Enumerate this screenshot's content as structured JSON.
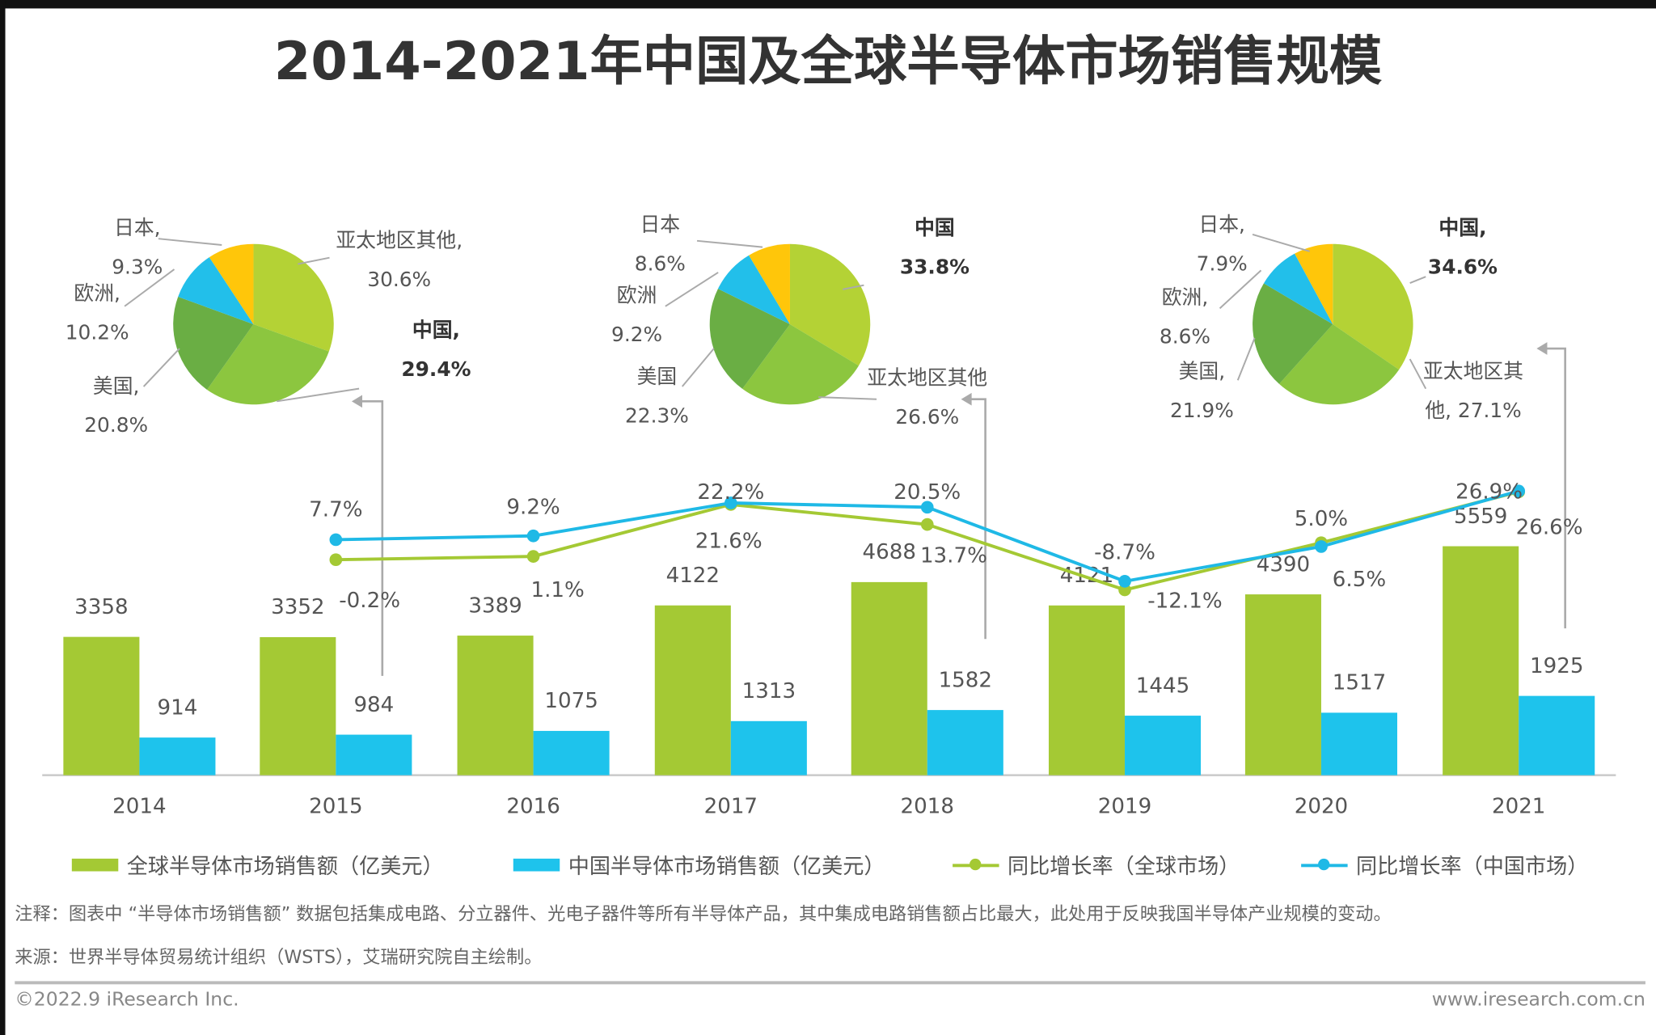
{
  "title": "2014-2021年中国及全球半导体市场销售规模",
  "colors": {
    "global_bar": "#a4c934",
    "china_bar": "#1ec3ec",
    "global_line": "#a4c934",
    "china_line": "#1fb9e6",
    "pie_apac_or_first": "#b4d235",
    "pie_second": "#8cc63f",
    "pie_usa": "#6aae44",
    "pie_europe": "#22bfea",
    "pie_japan": "#ffc60a"
  },
  "pies": [
    {
      "year": "2014",
      "slices": [
        {
          "name": "亚太地区其他",
          "value": 30.6
        },
        {
          "name": "中国",
          "value": 29.4
        },
        {
          "name": "美国",
          "value": 20.8
        },
        {
          "name": "欧洲",
          "value": 10.2
        },
        {
          "name": "日本",
          "value": 9.3
        }
      ],
      "labels": [
        {
          "line1": "日本,",
          "line2": "9.3%"
        },
        {
          "line1": "欧洲,",
          "line2": "10.2%"
        },
        {
          "line1": "美国,",
          "line2": "20.8%"
        },
        {
          "line1": "亚太地区其他,",
          "line2": "30.6%"
        },
        {
          "line1": "中国,",
          "line2": "29.4%"
        }
      ]
    },
    {
      "year": "2017",
      "slices": [
        {
          "name": "中国",
          "value": 33.8
        },
        {
          "name": "亚太地区其他",
          "value": 26.6
        },
        {
          "name": "美国",
          "value": 22.3
        },
        {
          "name": "欧洲",
          "value": 9.2
        },
        {
          "name": "日本",
          "value": 8.6
        }
      ],
      "labels": [
        {
          "line1": "日本",
          "line2": "8.6%"
        },
        {
          "line1": "欧洲",
          "line2": "9.2%"
        },
        {
          "line1": "美国",
          "line2": "22.3%"
        },
        {
          "line1": "中国",
          "line2": "33.8%"
        },
        {
          "line1": "亚太地区其他",
          "line2": "26.6%"
        }
      ]
    },
    {
      "year": "2021",
      "slices": [
        {
          "name": "中国",
          "value": 34.6
        },
        {
          "name": "亚太地区其他",
          "value": 27.1
        },
        {
          "name": "美国",
          "value": 21.9
        },
        {
          "name": "欧洲",
          "value": 8.6
        },
        {
          "name": "日本",
          "value": 7.9
        }
      ],
      "labels": [
        {
          "line1": "日本,",
          "line2": "7.9%"
        },
        {
          "line1": "欧洲,",
          "line2": "8.6%"
        },
        {
          "line1": "美国,",
          "line2": "21.9%"
        },
        {
          "line1": "中国,",
          "line2": "34.6%"
        },
        {
          "line1": "亚太地区其",
          "line2": "他, 27.1%"
        }
      ]
    }
  ],
  "chart_data": {
    "type": "bar",
    "categories": [
      "2014",
      "2015",
      "2016",
      "2017",
      "2018",
      "2019",
      "2020",
      "2021"
    ],
    "series": [
      {
        "name": "全球半导体市场销售额（亿美元）",
        "type": "bar",
        "values": [
          3358,
          3352,
          3389,
          4122,
          4688,
          4121,
          4390,
          5559
        ]
      },
      {
        "name": "中国半导体市场销售额（亿美元）",
        "type": "bar",
        "values": [
          914,
          984,
          1075,
          1313,
          1582,
          1445,
          1517,
          1925
        ]
      },
      {
        "name": "同比增长率（全球市场）",
        "type": "line",
        "unit": "%",
        "values": [
          null,
          -0.2,
          1.1,
          21.6,
          13.7,
          -12.1,
          6.5,
          26.6
        ]
      },
      {
        "name": "同比增长率（中国市场）",
        "type": "line",
        "unit": "%",
        "values": [
          null,
          7.7,
          9.2,
          22.2,
          20.5,
          -8.7,
          5.0,
          26.9
        ]
      }
    ],
    "title": "2014-2021年中国及全球半导体市场销售规模",
    "xlabel": "",
    "ylabel": "",
    "grid": false,
    "legend": "bottom"
  },
  "legend": [
    "全球半导体市场销售额（亿美元）",
    "中国半导体市场销售额（亿美元）",
    "同比增长率（全球市场）",
    "同比增长率（中国市场）"
  ],
  "notes": {
    "note": "注释：图表中 “半导体市场销售额” 数据包括集成电路、分立器件、光电子器件等所有半导体产品，其中集成电路销售额占比最大，此处用于反映我国半导体产业规模的变动。",
    "source": "来源：世界半导体贸易统计组织（WSTS），艾瑞研究院自主绘制。"
  },
  "footer": {
    "copyright": "©2022.9 iResearch Inc.",
    "website": "www.iresearch.com.cn"
  }
}
